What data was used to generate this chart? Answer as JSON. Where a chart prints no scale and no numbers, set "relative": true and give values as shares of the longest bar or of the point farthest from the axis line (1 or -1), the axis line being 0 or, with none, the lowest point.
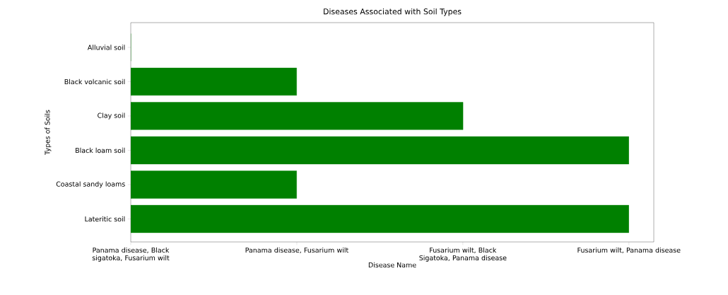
{
  "chart_data": {
    "type": "bar",
    "orientation": "horizontal",
    "relative": true,
    "title": "Diseases Associated with Soil Types",
    "xlabel": "Disease Name",
    "ylabel": "Types of Soils",
    "categories": [
      "Alluvial soil",
      "Black volcanic soil",
      "Clay soil",
      "Black loam soil",
      "Coastal sandy loams",
      "Lateritic soil"
    ],
    "values": [
      0,
      0.333,
      0.667,
      1,
      0.333,
      1
    ],
    "color": "#008000",
    "annotations": [
      "Panama disease, Black sigatoka, Fusarium wilt",
      "Panama disease, Fusarium wilt",
      "Fusarium wilt, Black Sigatoka, Panama disease",
      "Fusarium wilt, Panama disease"
    ]
  }
}
